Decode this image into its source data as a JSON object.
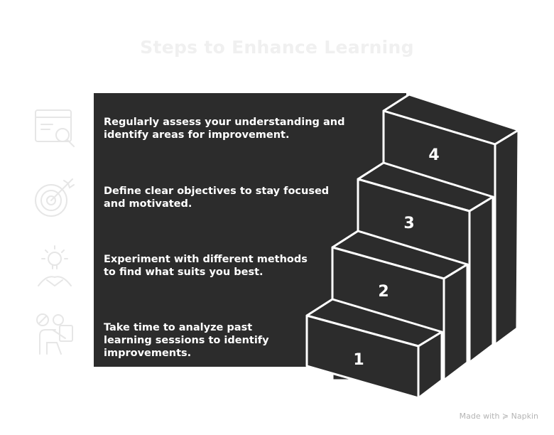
{
  "title": "Steps to Enhance Learning",
  "steps": [
    {
      "number": "4",
      "text": "Regularly assess your understanding and identify areas for improvement.",
      "icon": "assessment-magnifier-icon"
    },
    {
      "number": "3",
      "text": "Define clear objectives to stay focused and motivated.",
      "icon": "target-arrow-icon"
    },
    {
      "number": "2",
      "text": "Experiment with different methods to find what suits you best.",
      "icon": "lightbulb-idea-icon"
    },
    {
      "number": "1",
      "text": "Take time to analyze past learning sessions to identify improvements.",
      "icon": "person-reflect-icon"
    }
  ],
  "watermark": "Made with ≽ Napkin",
  "colors": {
    "panel": "#2c2c2c",
    "stairs": "#2c2c2c",
    "outline": "#ffffff",
    "icon": "#e6e6e6",
    "title": "#f0f0f0"
  }
}
